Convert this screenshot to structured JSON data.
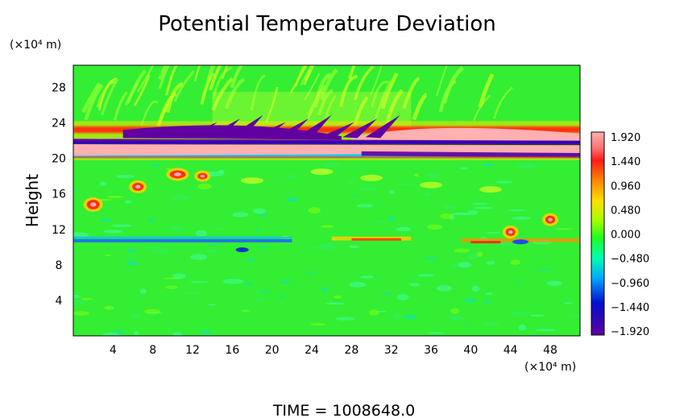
{
  "chart_data": {
    "type": "heatmap",
    "title": "Potential Temperature Deviation",
    "ylabel": "Height",
    "x_unit": "(×10⁴ m)",
    "y_unit": "(×10⁴ m)",
    "x_ticks": [
      4,
      8,
      12,
      16,
      20,
      24,
      28,
      32,
      36,
      40,
      44,
      48
    ],
    "y_ticks": [
      4,
      8,
      12,
      16,
      20,
      24,
      28
    ],
    "xlim": [
      0,
      51
    ],
    "ylim": [
      0,
      30.5
    ],
    "colorbar": {
      "labels": [
        "1.920",
        "1.440",
        "0.960",
        "0.480",
        "0.000",
        "−0.480",
        "−0.960",
        "−1.440",
        "−1.920"
      ],
      "values": [
        1.92,
        1.44,
        0.96,
        0.48,
        0.0,
        -0.48,
        -0.96,
        -1.44,
        -1.92
      ],
      "colors": [
        "#ffb0b0",
        "#ff2020",
        "#ffe000",
        "#90ff00",
        "#20ff20",
        "#00ffb0",
        "#00a8ff",
        "#0010d0",
        "#6000a0"
      ]
    },
    "footer": "TIME  =  1008648.0",
    "background_color": "#33ee33"
  }
}
